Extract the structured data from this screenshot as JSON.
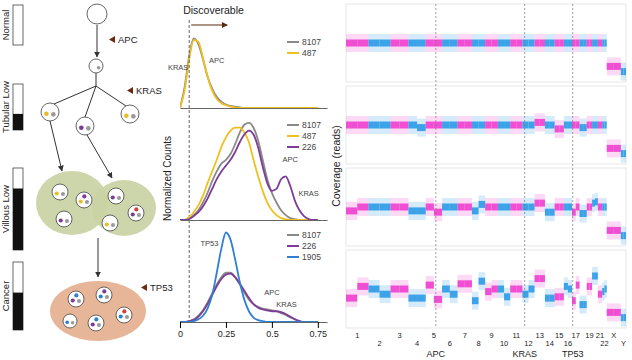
{
  "diagram": {
    "stages": [
      {
        "label": "Normal",
        "fraction": 0
      },
      {
        "label": "Tubular Low",
        "fraction": 0.35
      },
      {
        "label": "Villous Low",
        "fraction": 0.75
      },
      {
        "label": "Cancer",
        "fraction": 0.55
      }
    ],
    "mutations": [
      "APC",
      "KRAS",
      "TP53"
    ]
  },
  "chart_data": [
    {
      "type": "line",
      "title": "Discoverable",
      "threshold": 0.05,
      "xlim": [
        0,
        0.8
      ],
      "ylim": [
        0,
        1.05
      ],
      "tick_labels": false,
      "x": [
        0,
        0.025,
        0.05,
        0.075,
        0.1,
        0.125,
        0.15,
        0.175,
        0.2,
        0.225,
        0.25,
        0.275,
        0.3,
        0.325,
        0.35,
        0.375,
        0.4,
        0.425,
        0.45,
        0.475,
        0.5,
        0.525,
        0.55,
        0.575,
        0.6,
        0.625,
        0.65,
        0.675,
        0.7,
        0.725,
        0.75
      ],
      "series": [
        {
          "name": "8107",
          "color": "#8a8a8a",
          "values": [
            0,
            0.3,
            0.75,
            1.0,
            0.92,
            0.7,
            0.45,
            0.28,
            0.16,
            0.09,
            0.05,
            0.03,
            0.02,
            0.01,
            0,
            0,
            0,
            0,
            0,
            0,
            0,
            0,
            0,
            0,
            0,
            0,
            0,
            0,
            0,
            0,
            0
          ]
        },
        {
          "name": "487",
          "color": "#f0c020",
          "values": [
            0,
            0.25,
            0.7,
            0.98,
            0.95,
            0.72,
            0.45,
            0.25,
            0.13,
            0.07,
            0.04,
            0.02,
            0.01,
            0,
            0,
            0,
            0,
            0,
            0,
            0,
            0,
            0,
            0,
            0,
            0,
            0,
            0,
            0,
            0,
            0,
            0
          ]
        }
      ],
      "annotations": [
        {
          "text": "KRAS",
          "x": -0.01,
          "y": 0.55
        },
        {
          "text": "APC",
          "x": 0.2,
          "y": 0.65
        }
      ]
    },
    {
      "type": "line",
      "y_label": "Normalized Counts",
      "xlim": [
        0,
        0.8
      ],
      "ylim": [
        0,
        1.05
      ],
      "tick_labels": false,
      "x": [
        0,
        0.025,
        0.05,
        0.075,
        0.1,
        0.125,
        0.15,
        0.175,
        0.2,
        0.225,
        0.25,
        0.275,
        0.3,
        0.325,
        0.35,
        0.375,
        0.4,
        0.425,
        0.45,
        0.475,
        0.5,
        0.525,
        0.55,
        0.575,
        0.6,
        0.625,
        0.65,
        0.675,
        0.7,
        0.725,
        0.75
      ],
      "series": [
        {
          "name": "8107",
          "color": "#8a8a8a",
          "values": [
            0,
            0,
            0.02,
            0.05,
            0.1,
            0.18,
            0.28,
            0.4,
            0.5,
            0.58,
            0.62,
            0.68,
            0.78,
            0.9,
            0.98,
            1.0,
            0.95,
            0.82,
            0.62,
            0.42,
            0.28,
            0.18,
            0.1,
            0.05,
            0.02,
            0.01,
            0,
            0,
            0,
            0,
            0
          ]
        },
        {
          "name": "487",
          "color": "#f0c020",
          "values": [
            0,
            0,
            0.03,
            0.08,
            0.15,
            0.25,
            0.38,
            0.5,
            0.62,
            0.75,
            0.85,
            0.92,
            0.95,
            0.95,
            0.9,
            0.8,
            0.62,
            0.45,
            0.3,
            0.18,
            0.1,
            0.05,
            0.02,
            0.01,
            0,
            0,
            0,
            0,
            0,
            0,
            0
          ]
        },
        {
          "name": "226",
          "color": "#7d3c98",
          "values": [
            0,
            0,
            0.01,
            0.04,
            0.08,
            0.14,
            0.22,
            0.32,
            0.42,
            0.5,
            0.56,
            0.62,
            0.7,
            0.8,
            0.88,
            0.92,
            0.88,
            0.75,
            0.55,
            0.38,
            0.3,
            0.32,
            0.42,
            0.45,
            0.35,
            0.2,
            0.1,
            0.04,
            0.01,
            0,
            0
          ]
        }
      ],
      "annotations": [
        {
          "text": "APC",
          "x": 0.6,
          "y": 0.6
        },
        {
          "text": "KRAS",
          "x": 0.7,
          "y": 0.25
        }
      ]
    },
    {
      "type": "line",
      "xlim": [
        0,
        0.8
      ],
      "ylim": [
        0,
        1.05
      ],
      "xticks": [
        0,
        0.25,
        0.5,
        0.75
      ],
      "tick_labels": "x",
      "x": [
        0,
        0.025,
        0.05,
        0.075,
        0.1,
        0.125,
        0.15,
        0.175,
        0.2,
        0.225,
        0.25,
        0.275,
        0.3,
        0.325,
        0.35,
        0.375,
        0.4,
        0.425,
        0.45,
        0.475,
        0.5,
        0.525,
        0.55,
        0.575,
        0.6,
        0.625,
        0.65,
        0.675,
        0.7,
        0.725,
        0.75
      ],
      "series": [
        {
          "name": "8107",
          "color": "#8a8a8a",
          "values": [
            0,
            0,
            0.01,
            0.03,
            0.07,
            0.13,
            0.22,
            0.32,
            0.42,
            0.5,
            0.55,
            0.55,
            0.5,
            0.42,
            0.33,
            0.25,
            0.2,
            0.17,
            0.15,
            0.14,
            0.13,
            0.12,
            0.1,
            0.08,
            0.05,
            0.03,
            0.01,
            0,
            0,
            0,
            0
          ]
        },
        {
          "name": "226",
          "color": "#7d3c98",
          "values": [
            0,
            0,
            0.01,
            0.02,
            0.06,
            0.12,
            0.2,
            0.3,
            0.4,
            0.48,
            0.53,
            0.54,
            0.5,
            0.43,
            0.35,
            0.27,
            0.2,
            0.16,
            0.14,
            0.13,
            0.12,
            0.12,
            0.11,
            0.09,
            0.06,
            0.03,
            0.01,
            0,
            0,
            0,
            0
          ]
        },
        {
          "name": "1905",
          "color": "#2f80d0",
          "values": [
            0,
            0,
            0,
            0.01,
            0.03,
            0.07,
            0.15,
            0.3,
            0.55,
            0.82,
            1.0,
            0.92,
            0.7,
            0.45,
            0.25,
            0.12,
            0.05,
            0.02,
            0.01,
            0,
            0,
            0,
            0,
            0,
            0,
            0,
            0,
            0,
            0,
            0,
            0
          ]
        }
      ],
      "annotations": [
        {
          "text": "TP53",
          "x": 0.16,
          "y": 0.85
        },
        {
          "text": "APC",
          "x": 0.5,
          "y": 0.3
        },
        {
          "text": "KRAS",
          "x": 0.58,
          "y": 0.17
        }
      ]
    },
    {
      "type": "segments",
      "y_label": "Coverage (reads)",
      "ylim": [
        -1.5,
        1.5
      ],
      "tick_labels": "x",
      "categories": [
        "1",
        "2",
        "3",
        "4",
        "5",
        "6",
        "7",
        "8",
        "9",
        "10",
        "11",
        "12",
        "13",
        "14",
        "15",
        "16",
        "17",
        null,
        "19",
        null,
        "21",
        "22",
        "X",
        "Y"
      ],
      "chrom_sizes": [
        249,
        243,
        198,
        191,
        181,
        171,
        159,
        146,
        141,
        136,
        135,
        134,
        115,
        107,
        102,
        90,
        83,
        80,
        59,
        64,
        47,
        51,
        156,
        57
      ],
      "colors": [
        "#ee3fcf",
        "#2b9be6",
        "#ee3fcf",
        "#2b9be6",
        "#ee3fcf",
        "#2b9be6",
        "#ee3fcf",
        "#2b9be6",
        "#ee3fcf",
        "#2b9be6",
        "#ee3fcf",
        "#2b9be6",
        "#ee3fcf",
        "#2b9be6",
        "#ee3fcf",
        "#2b9be6",
        "#ee3fcf",
        "#2b9be6",
        "#ee3fcf",
        "#2b9be6",
        "#ee3fcf",
        "#2b9be6",
        "#ee3fcf",
        "#2b9be6"
      ],
      "genes": [
        {
          "name": "APC",
          "chrom": "5",
          "position": 112
        },
        {
          "name": "KRAS",
          "chrom": "12",
          "position": 25
        },
        {
          "name": "TP53",
          "chrom": "17",
          "position": 8
        }
      ],
      "tracks": [
        {
          "values": [
            [
              0,
              0
            ],
            [
              0,
              0
            ],
            [
              0,
              0
            ],
            [
              0,
              0
            ],
            [
              0,
              0
            ],
            [
              0,
              0
            ],
            [
              0,
              0
            ],
            [
              0,
              0
            ],
            [
              0,
              0
            ],
            [
              0,
              0
            ],
            [
              0,
              0
            ],
            [
              0,
              0
            ],
            [
              0,
              0
            ],
            [
              0,
              0
            ],
            [
              0,
              0
            ],
            [
              0,
              0
            ],
            [
              0,
              0
            ],
            [
              0,
              0
            ],
            [
              0,
              0
            ],
            [
              0,
              0
            ],
            [
              0,
              0
            ],
            [
              0,
              0
            ],
            [
              -0.9,
              -0.9
            ],
            [
              -1.1,
              -1.1
            ]
          ]
        },
        {
          "values": [
            [
              0,
              0
            ],
            [
              0,
              0
            ],
            [
              0,
              0
            ],
            [
              0,
              -0.1
            ],
            [
              0,
              0
            ],
            [
              0,
              0
            ],
            [
              0,
              0
            ],
            [
              0,
              0
            ],
            [
              0,
              0
            ],
            [
              0,
              0
            ],
            [
              0,
              0
            ],
            [
              0,
              0
            ],
            [
              0.1,
              0.1
            ],
            [
              0,
              0
            ],
            [
              -0.15,
              -0.15
            ],
            [
              0,
              0
            ],
            [
              0,
              0
            ],
            [
              -0.1,
              -0.1
            ],
            [
              0,
              0
            ],
            [
              0,
              0
            ],
            [
              0,
              0
            ],
            [
              0,
              0
            ],
            [
              -0.9,
              -0.9
            ],
            [
              -1.1,
              -1.1
            ]
          ]
        },
        {
          "values": [
            [
              -0.15,
              0
            ],
            [
              0,
              0
            ],
            [
              0,
              0
            ],
            [
              -0.15,
              -0.15
            ],
            [
              0,
              -0.2
            ],
            [
              0,
              0
            ],
            [
              0,
              0
            ],
            [
              -0.15,
              0.1
            ],
            [
              0,
              0
            ],
            [
              0,
              0
            ],
            [
              0,
              0
            ],
            [
              0,
              0
            ],
            [
              0.15,
              0.15
            ],
            [
              -0.2,
              -0.2
            ],
            [
              0,
              0
            ],
            [
              0,
              0
            ],
            [
              -0.2,
              0
            ],
            [
              -0.25,
              -0.25
            ],
            [
              0,
              0
            ],
            [
              0.15,
              0.2
            ],
            [
              0,
              0
            ],
            [
              0,
              0
            ],
            [
              -0.9,
              -0.9
            ],
            [
              -1.1,
              -1.1
            ]
          ]
        },
        {
          "values": [
            [
              -0.35,
              0.1
            ],
            [
              0,
              -0.2
            ],
            [
              0,
              0
            ],
            [
              -0.35,
              -0.35
            ],
            [
              0.15,
              -0.4
            ],
            [
              0,
              -0.2
            ],
            [
              0.2,
              0.2
            ],
            [
              -0.45,
              0.3
            ],
            [
              -0.1,
              0
            ],
            [
              0,
              -0.3
            ],
            [
              0,
              0
            ],
            [
              -0.2,
              0
            ],
            [
              0.4,
              0.4
            ],
            [
              -0.35,
              -0.35
            ],
            [
              -0.3,
              -0.3
            ],
            [
              0.1,
              0
            ],
            [
              -0.45,
              0.15
            ],
            [
              -0.6,
              -0.6
            ],
            [
              0.1,
              0.1
            ],
            [
              0.5,
              0.5
            ],
            [
              -0.2,
              -0.2
            ],
            [
              -0.1,
              0
            ],
            [
              -0.9,
              -0.9
            ],
            [
              -1.1,
              -1.1
            ]
          ]
        }
      ]
    }
  ]
}
